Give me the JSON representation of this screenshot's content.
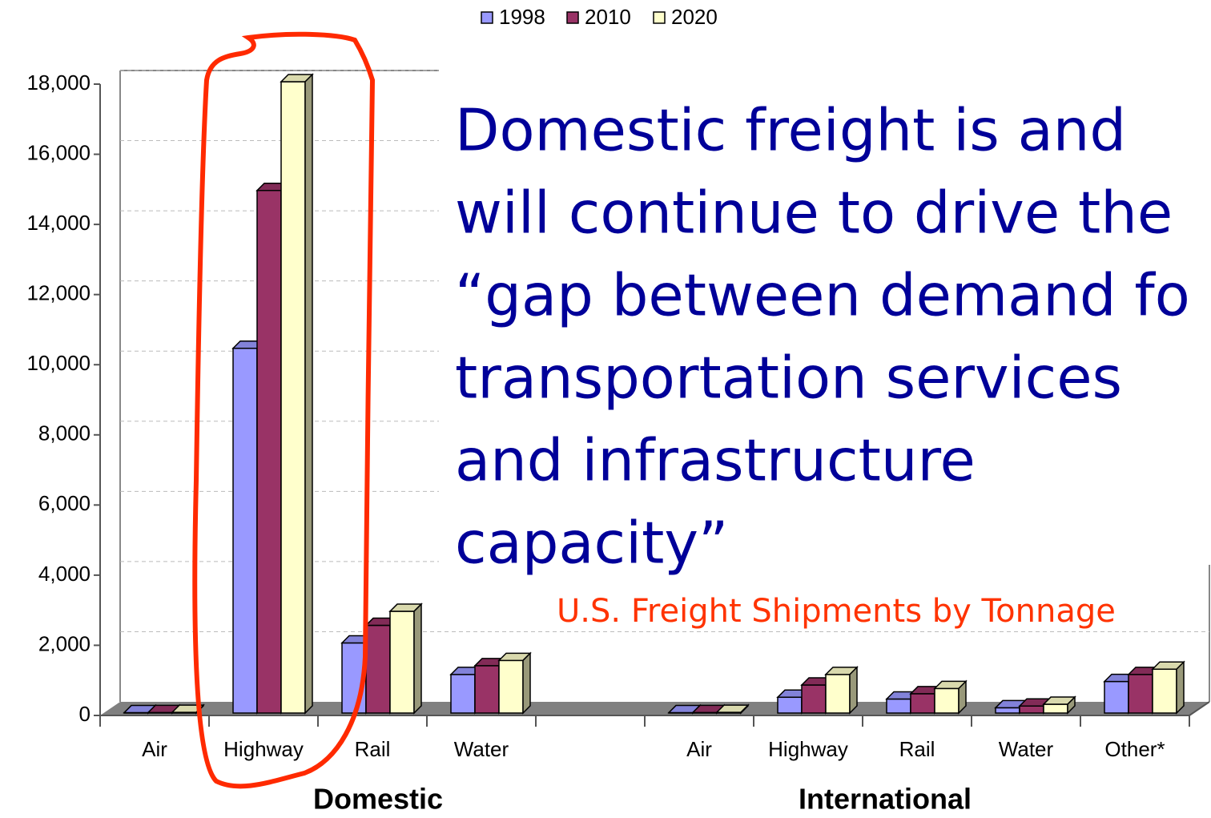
{
  "chart_data": {
    "type": "bar",
    "subtitle": "U.S. Freight Shipments by Tonnage",
    "annotation_lines": [
      "Domestic freight is and",
      "will continue to drive the",
      "“gap between demand fo",
      "transportation services",
      "and infrastructure",
      "capacity”"
    ],
    "categories": [
      "Air",
      "Highway",
      "Rail",
      "Water",
      null,
      "Air",
      "Highway",
      "Rail",
      "Water",
      "Other*"
    ],
    "group_labels": [
      "Domestic",
      "International"
    ],
    "series": [
      {
        "name": "1998",
        "color": "#9999ff",
        "values": [
          10,
          10400,
          2000,
          1100,
          null,
          10,
          450,
          400,
          150,
          900
        ]
      },
      {
        "name": "2010",
        "color": "#993366",
        "values": [
          15,
          14900,
          2500,
          1350,
          null,
          15,
          800,
          550,
          200,
          1100
        ]
      },
      {
        "name": "2020",
        "color": "#ffffcc",
        "values": [
          20,
          18000,
          2900,
          1500,
          null,
          20,
          1100,
          700,
          250,
          1250
        ]
      }
    ],
    "ylim": [
      0,
      18000
    ],
    "yticks": [
      0,
      {
        "value": 2000,
        "label": "2,000"
      },
      {
        "value": 4000,
        "label": "4,000"
      },
      {
        "value": 6000,
        "label": "6,000"
      },
      {
        "value": 8000,
        "label": "8,000"
      },
      {
        "value": 10000,
        "label": "10,000"
      },
      {
        "value": 12000,
        "label": "12,000"
      },
      {
        "value": 14000,
        "label": "14,000"
      },
      {
        "value": 16000,
        "label": "16,000"
      },
      {
        "value": 18000,
        "label": "18,000"
      }
    ],
    "grid": true,
    "legend": "top"
  }
}
